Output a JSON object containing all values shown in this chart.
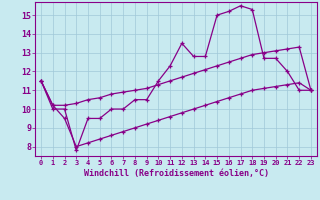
{
  "xlabel": "Windchill (Refroidissement éolien,°C)",
  "background_color": "#c8eaf0",
  "grid_color": "#a0c8d8",
  "line_color": "#880088",
  "xlim": [
    -0.5,
    23.5
  ],
  "ylim": [
    7.5,
    15.7
  ],
  "xticks": [
    0,
    1,
    2,
    3,
    4,
    5,
    6,
    7,
    8,
    9,
    10,
    11,
    12,
    13,
    14,
    15,
    16,
    17,
    18,
    19,
    20,
    21,
    22,
    23
  ],
  "yticks": [
    8,
    9,
    10,
    11,
    12,
    13,
    14,
    15
  ],
  "series1": [
    11.5,
    10.0,
    10.0,
    7.8,
    9.5,
    9.5,
    10.0,
    10.0,
    10.5,
    10.5,
    11.5,
    12.3,
    13.5,
    12.8,
    12.8,
    15.0,
    15.2,
    15.5,
    15.3,
    12.7,
    12.7,
    12.0,
    11.0,
    11.0
  ],
  "series2": [
    11.5,
    10.2,
    10.2,
    10.3,
    10.5,
    10.6,
    10.8,
    10.9,
    11.0,
    11.1,
    11.3,
    11.5,
    11.7,
    11.9,
    12.1,
    12.3,
    12.5,
    12.7,
    12.9,
    13.0,
    13.1,
    13.2,
    13.3,
    11.0
  ],
  "series3": [
    11.5,
    10.2,
    9.5,
    8.0,
    8.2,
    8.4,
    8.6,
    8.8,
    9.0,
    9.2,
    9.4,
    9.6,
    9.8,
    10.0,
    10.2,
    10.4,
    10.6,
    10.8,
    11.0,
    11.1,
    11.2,
    11.3,
    11.4,
    11.0
  ]
}
